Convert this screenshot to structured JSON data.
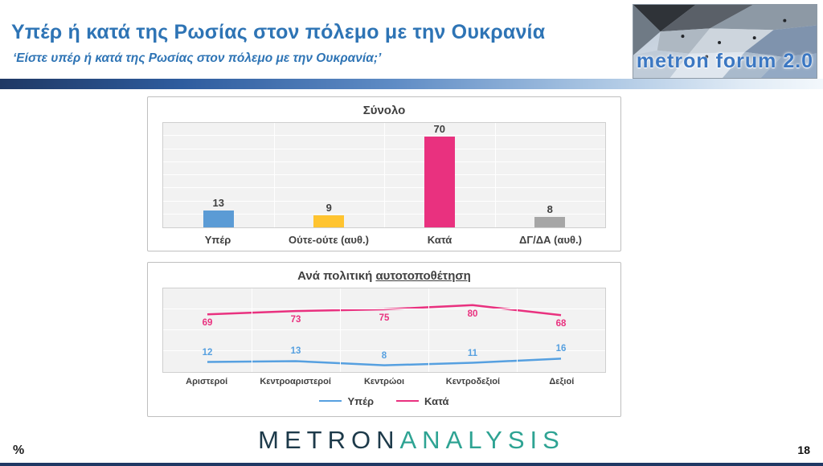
{
  "header": {
    "title": "Υπέρ ή κατά της Ρωσίας στον πόλεμο με την Ουκρανία",
    "subtitle": "‘Είστε υπέρ ή κατά της Ρωσίας στον πόλεμο με την Ουκρανία;’",
    "logo_text": "metron forum 2.0"
  },
  "chart_data": [
    {
      "type": "bar",
      "title": "Σύνολο",
      "categories": [
        "Υπέρ",
        "Ούτε-ούτε (αυθ.)",
        "Κατά",
        "ΔΓ/ΔΑ (αυθ.)"
      ],
      "values": [
        13,
        9,
        70,
        8
      ],
      "colors": [
        "#5b9bd5",
        "#ffc430",
        "#e9317f",
        "#a6a6a6"
      ],
      "ylim": [
        0,
        80
      ],
      "grid": true,
      "value_labels": true
    },
    {
      "type": "line",
      "title": "Ανά πολιτική αυτοτοποθέτηση",
      "title_prefix": "Ανά πολιτική ",
      "title_underlined": "αυτοτοποθέτηση",
      "categories": [
        "Αριστεροί",
        "Κεντροαριστεροί",
        "Κεντρώοι",
        "Κεντροδεξιοί",
        "Δεξιοί"
      ],
      "series": [
        {
          "name": "Υπέρ",
          "values": [
            12,
            13,
            8,
            11,
            16
          ],
          "color": "#56a0e0",
          "label_position": "above"
        },
        {
          "name": "Κατά",
          "values": [
            69,
            73,
            75,
            80,
            68
          ],
          "color": "#e9317f",
          "label_position": "below"
        }
      ],
      "ylim": [
        0,
        100
      ],
      "grid": true,
      "legend_position": "bottom"
    }
  ],
  "footer": {
    "brand_primary": "METRON",
    "brand_secondary": "ANALYSIS",
    "percent_label": "%",
    "page_number": "18"
  }
}
